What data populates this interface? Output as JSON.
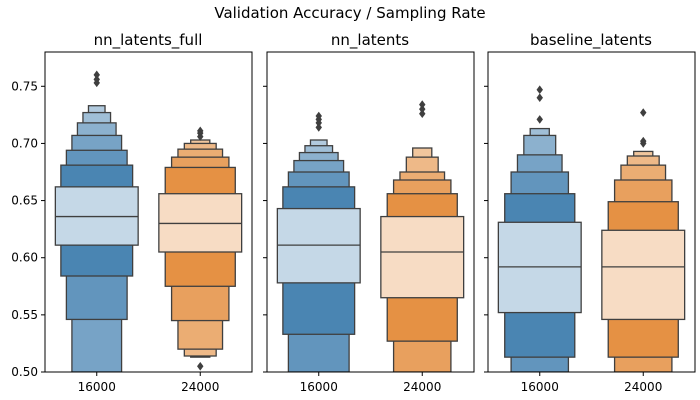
{
  "chart_data": {
    "type": "boxen",
    "title": "Validation Accuracy / Sampling Rate",
    "categories": [
      "16000",
      "24000"
    ],
    "ylim": [
      0.5,
      0.78
    ],
    "yticks": [
      "0.50",
      "0.55",
      "0.60",
      "0.65",
      "0.70",
      "0.75"
    ],
    "yticks_values": [
      0.5,
      0.55,
      0.6,
      0.65,
      0.7,
      0.75
    ],
    "series_colors": [
      "#3174a8",
      "#e1822b"
    ],
    "edge_color": "#3f3f3f",
    "panels": [
      {
        "title": "nn_latents_full",
        "boxes": [
          {
            "category": "16000",
            "median": 0.636,
            "levels": [
              {
                "low": 0.611,
                "high": 0.662
              },
              {
                "low": 0.584,
                "high": 0.681
              },
              {
                "low": 0.546,
                "high": 0.694
              },
              {
                "low": 0.5,
                "high": 0.707
              },
              {
                "low": 0.5,
                "high": 0.718
              },
              {
                "low": 0.5,
                "high": 0.727
              },
              {
                "low": 0.5,
                "high": 0.733
              }
            ],
            "outliers": [
              0.753,
              0.756,
              0.76
            ]
          },
          {
            "category": "24000",
            "median": 0.63,
            "levels": [
              {
                "low": 0.605,
                "high": 0.656
              },
              {
                "low": 0.575,
                "high": 0.679
              },
              {
                "low": 0.545,
                "high": 0.688
              },
              {
                "low": 0.52,
                "high": 0.695
              },
              {
                "low": 0.514,
                "high": 0.7
              },
              {
                "low": 0.513,
                "high": 0.703
              }
            ],
            "outliers": [
              0.706,
              0.709,
              0.711,
              0.505
            ]
          }
        ]
      },
      {
        "title": "nn_latents",
        "boxes": [
          {
            "category": "16000",
            "median": 0.611,
            "levels": [
              {
                "low": 0.578,
                "high": 0.643
              },
              {
                "low": 0.533,
                "high": 0.662
              },
              {
                "low": 0.5,
                "high": 0.675
              },
              {
                "low": 0.5,
                "high": 0.685
              },
              {
                "low": 0.5,
                "high": 0.692
              },
              {
                "low": 0.5,
                "high": 0.698
              },
              {
                "low": 0.5,
                "high": 0.703
              }
            ],
            "outliers": [
              0.714,
              0.718,
              0.721,
              0.724
            ]
          },
          {
            "category": "24000",
            "median": 0.605,
            "levels": [
              {
                "low": 0.565,
                "high": 0.636
              },
              {
                "low": 0.527,
                "high": 0.656
              },
              {
                "low": 0.5,
                "high": 0.668
              },
              {
                "low": 0.5,
                "high": 0.675
              },
              {
                "low": 0.5,
                "high": 0.688
              },
              {
                "low": 0.5,
                "high": 0.696
              }
            ],
            "outliers": [
              0.726,
              0.73,
              0.734
            ]
          }
        ]
      },
      {
        "title": "baseline_latents",
        "boxes": [
          {
            "category": "16000",
            "median": 0.592,
            "levels": [
              {
                "low": 0.552,
                "high": 0.631
              },
              {
                "low": 0.513,
                "high": 0.656
              },
              {
                "low": 0.5,
                "high": 0.675
              },
              {
                "low": 0.5,
                "high": 0.69
              },
              {
                "low": 0.5,
                "high": 0.707
              },
              {
                "low": 0.5,
                "high": 0.713
              }
            ],
            "outliers": [
              0.721,
              0.74,
              0.747
            ]
          },
          {
            "category": "24000",
            "median": 0.592,
            "levels": [
              {
                "low": 0.546,
                "high": 0.624
              },
              {
                "low": 0.513,
                "high": 0.649
              },
              {
                "low": 0.5,
                "high": 0.668
              },
              {
                "low": 0.5,
                "high": 0.681
              },
              {
                "low": 0.5,
                "high": 0.689
              },
              {
                "low": 0.5,
                "high": 0.693
              }
            ],
            "outliers": [
              0.7,
              0.702,
              0.727
            ]
          }
        ]
      }
    ]
  }
}
